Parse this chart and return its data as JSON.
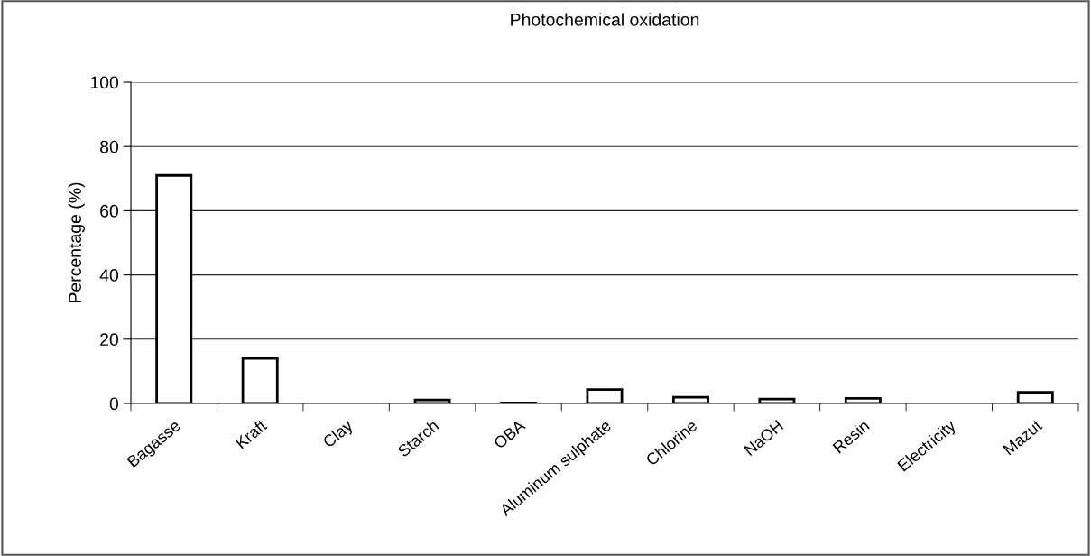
{
  "chart_data": {
    "type": "bar",
    "title": "Photochemical oxidation",
    "ylabel": "Percentage (%)",
    "categories": [
      "Bagasse",
      "Kraft",
      "Clay",
      "Starch",
      "OBA",
      "Aluminum sulphate",
      "Chlorine",
      "NaOH",
      "Resin",
      "Electricity",
      "Mazut"
    ],
    "values": [
      71,
      14,
      0,
      1.1,
      0.2,
      4.3,
      1.9,
      1.4,
      1.6,
      0,
      3.5
    ],
    "color": "#ffffff",
    "ylim": [
      0,
      100
    ],
    "yticks": [
      0,
      20,
      40,
      60,
      80,
      100
    ],
    "grid": "y",
    "legend": false
  }
}
